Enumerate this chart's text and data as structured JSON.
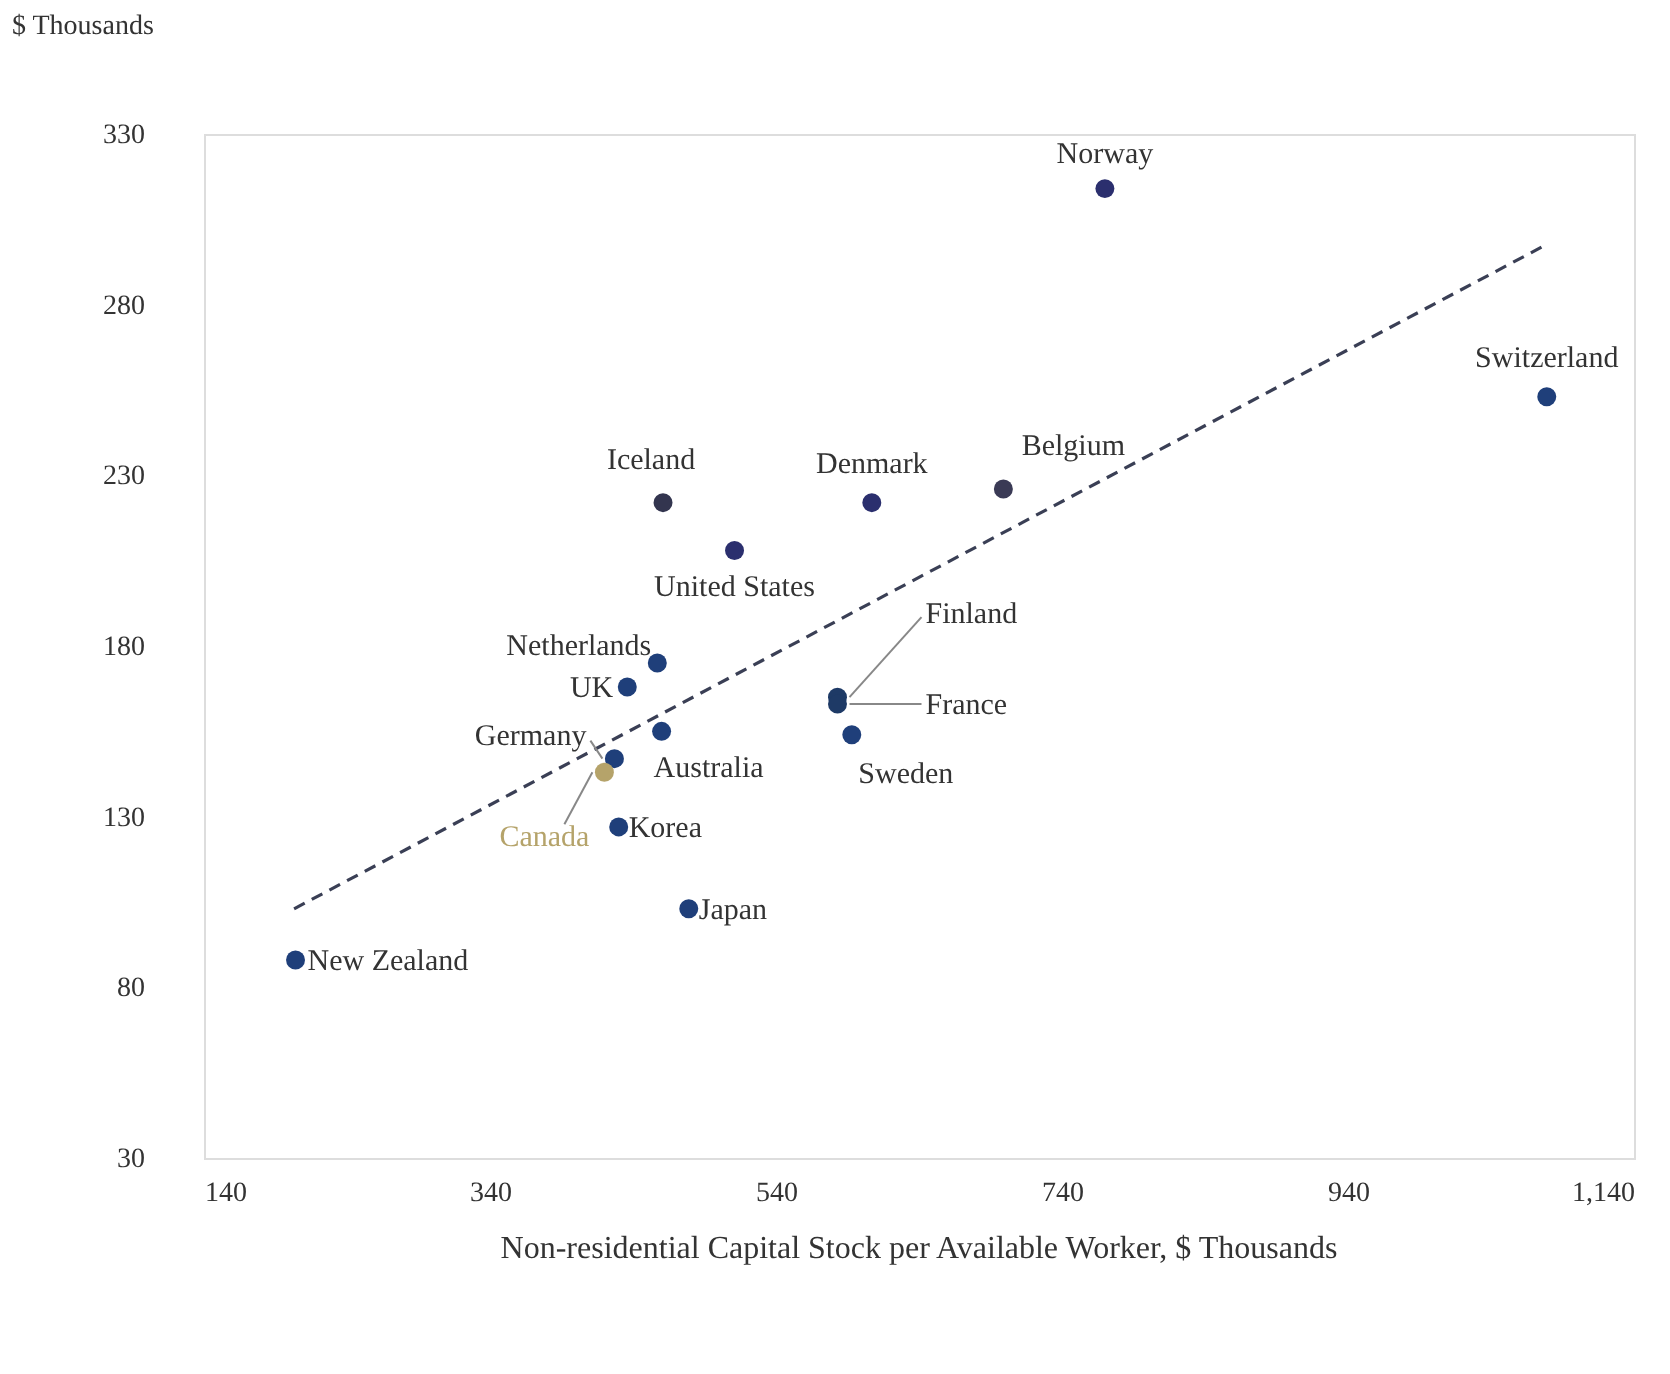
{
  "chart_data": {
    "type": "scatter",
    "ylabel": "$ Thousands",
    "xlabel": "Non-residential Capital Stock per Available Worker, $ Thousands",
    "xlim": [
      140,
      1140
    ],
    "xticks": [
      140,
      340,
      540,
      740,
      940,
      {
        "value": 1140,
        "label": "1,140"
      }
    ],
    "ylim": [
      30,
      330
    ],
    "yticks": [
      30,
      80,
      130,
      180,
      230,
      280,
      330
    ],
    "grid": false,
    "marker": "circle",
    "series": [
      {
        "x": [
          770,
          1079,
          699,
          607,
          461,
          511,
          457,
          436,
          583,
          583,
          593,
          460,
          427,
          420,
          430,
          479,
          204
        ],
        "values": [
          314,
          253,
          226,
          222,
          222,
          208,
          175,
          168,
          165,
          163,
          154,
          155,
          147,
          143,
          127,
          103,
          88
        ],
        "colors": [
          "#2b2f6e",
          "#1f3f7a",
          "#3a3a55",
          "#2b2f6e",
          "#33354f",
          "#2b2f6e",
          "#1f3f7a",
          "#1f3f7a",
          "#1e3a66",
          "#1e3a66",
          "#1f3f7a",
          "#1f3f7a",
          "#1f3f7a",
          "#b5a36a",
          "#1f3f7a",
          "#1f3f7a",
          "#1f3f7a"
        ]
      },
      {
        "type": "line",
        "x": [
          203,
          1076
        ],
        "values": [
          103,
          297
        ],
        "color": "#3a3f55",
        "line_style": "dashed",
        "marker": "none"
      }
    ],
    "annotations": [
      {
        "text": "Norway",
        "x": 770,
        "y": 314
      },
      {
        "text": "Switzerland",
        "x": 1079,
        "y": 253
      },
      {
        "text": "Belgium",
        "x": 699,
        "y": 226
      },
      {
        "text": "Denmark",
        "x": 607,
        "y": 222
      },
      {
        "text": "Iceland",
        "x": 461,
        "y": 222
      },
      {
        "text": "United States",
        "x": 511,
        "y": 208
      },
      {
        "text": "Netherlands",
        "x": 457,
        "y": 175
      },
      {
        "text": "UK",
        "x": 436,
        "y": 168
      },
      {
        "text": "Finland",
        "x": 583,
        "y": 165
      },
      {
        "text": "France",
        "x": 583,
        "y": 163
      },
      {
        "text": "Sweden",
        "x": 593,
        "y": 154
      },
      {
        "text": "Australia",
        "x": 460,
        "y": 155
      },
      {
        "text": "Germany",
        "x": 427,
        "y": 147
      },
      {
        "text": "Canada",
        "x": 420,
        "y": 143
      },
      {
        "text": "Korea",
        "x": 430,
        "y": 127
      },
      {
        "text": "Japan",
        "x": 479,
        "y": 103
      },
      {
        "text": "New Zealand",
        "x": 204,
        "y": 88
      }
    ]
  }
}
